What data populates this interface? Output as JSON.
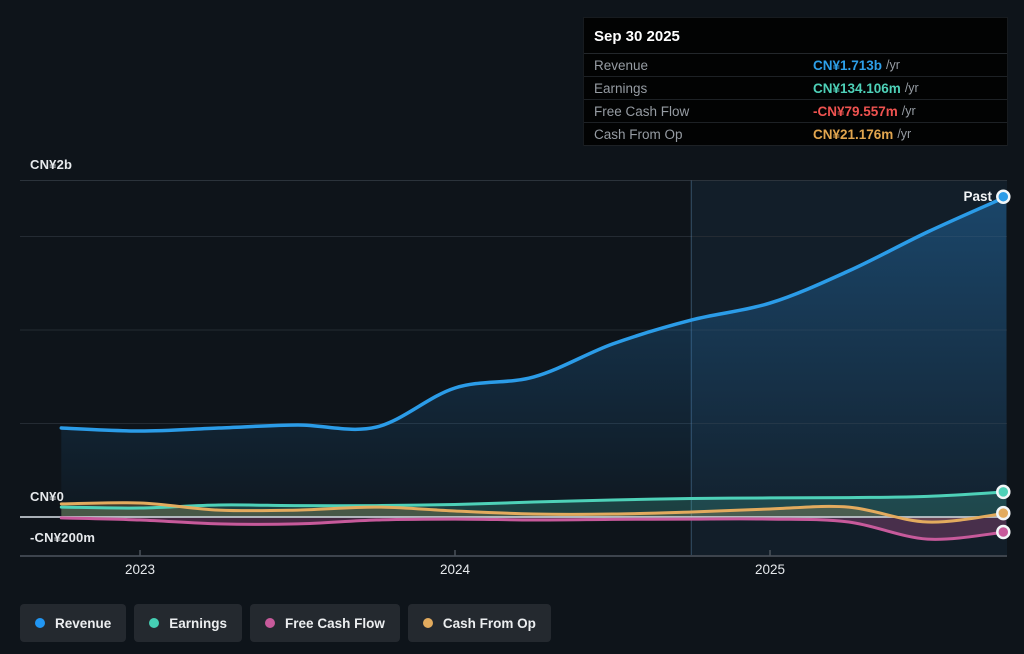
{
  "tooltip": {
    "date": "Sep 30 2025",
    "rows": [
      {
        "label": "Revenue",
        "value": "CN¥1.713b",
        "unit": "/yr",
        "color": "#2d9fe8"
      },
      {
        "label": "Earnings",
        "value": "CN¥134.106m",
        "unit": "/yr",
        "color": "#4ed1b8"
      },
      {
        "label": "Free Cash Flow",
        "value": "-CN¥79.557m",
        "unit": "/yr",
        "color": "#ef5350"
      },
      {
        "label": "Cash From Op",
        "value": "CN¥21.176m",
        "unit": "/yr",
        "color": "#e2a64f"
      }
    ]
  },
  "axes": {
    "y_top_label": "CN¥2b",
    "y_zero_label": "CN¥0",
    "y_bottom_label": "-CN¥200m",
    "x_labels": [
      "2023",
      "2024",
      "2025"
    ]
  },
  "past_label": "Past",
  "legend": {
    "items": [
      {
        "label": "Revenue",
        "color": "#2196f3"
      },
      {
        "label": "Earnings",
        "color": "#45cfb4"
      },
      {
        "label": "Free Cash Flow",
        "color": "#c75a9b"
      },
      {
        "label": "Cash From Op",
        "color": "#e3ab5e"
      }
    ]
  },
  "chart_data": {
    "type": "line",
    "title": "Past financial performance",
    "unit": "CN¥ millions per year",
    "x_years": [
      2022.75,
      2023.0,
      2023.25,
      2023.5,
      2023.75,
      2024.0,
      2024.25,
      2024.5,
      2024.75,
      2025.0,
      2025.25,
      2025.5,
      2025.75
    ],
    "x_tick_years": [
      2023,
      2024,
      2025
    ],
    "ylim_millions": [
      -213,
      2000
    ],
    "gridline_values_millions": [
      500,
      1000,
      1500
    ],
    "highlight_start_year": 2024.75,
    "series": [
      {
        "name": "Revenue",
        "color": "#2b9ce8",
        "width": 3.5,
        "fill": "gradient",
        "values": [
          476,
          460,
          476,
          492,
          481,
          690,
          749,
          925,
          1053,
          1144,
          1316,
          1524,
          1713
        ]
      },
      {
        "name": "Earnings",
        "color": "#4ed1b8",
        "width": 3,
        "fill": "rgba(78,209,184,0.22)",
        "values": [
          53,
          48,
          64,
          61,
          61,
          67,
          80,
          91,
          99,
          102,
          104,
          110,
          134
        ]
      },
      {
        "name": "Cash From Op",
        "color": "#e3ab5e",
        "width": 3,
        "fill": "rgba(227,171,94,0.22)",
        "values": [
          70,
          75,
          37,
          37,
          53,
          32,
          16,
          16,
          27,
          43,
          53,
          -27,
          21
        ]
      },
      {
        "name": "Free Cash Flow",
        "color": "#c75a9b",
        "width": 3,
        "fill": "rgba(199,90,155,0.30)",
        "values": [
          -5,
          -16,
          -37,
          -37,
          -16,
          -11,
          -16,
          -13,
          -11,
          -11,
          -27,
          -118,
          -80
        ]
      }
    ],
    "last_point_values": {
      "Revenue": 1713,
      "Earnings": 134.106,
      "Free Cash Flow": -79.557,
      "Cash From Op": 21.176
    }
  }
}
